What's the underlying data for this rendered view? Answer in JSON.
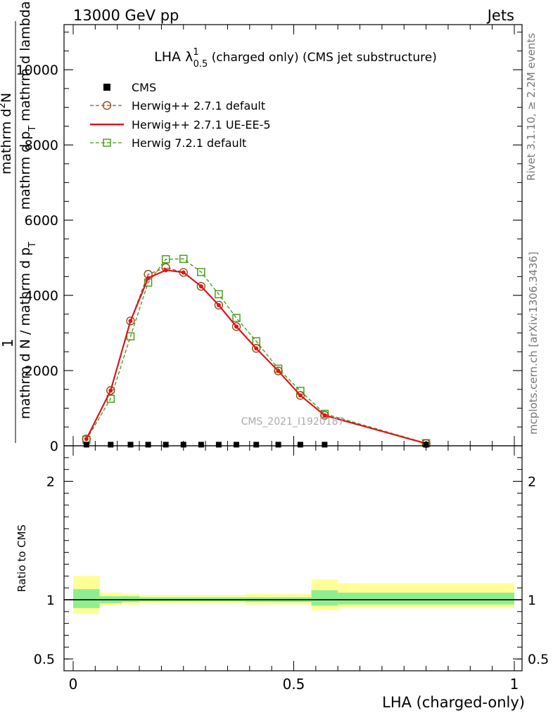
{
  "header": {
    "left": "13000 GeV pp",
    "right": "Jets"
  },
  "side": {
    "rivet": "Rivet 3.1.10, ≥ 2.2M events",
    "mcplots": "mcplots.cern.ch [arXiv:1306.3436]"
  },
  "chart_data": {
    "type": "line",
    "title": {
      "main": "LHA λ",
      "sup": "1",
      "sub": "0.5",
      "rest": " (charged only) (CMS jet substructure)"
    },
    "watermark": "CMS_2021_I1920187",
    "xlabel": "LHA (charged-only)",
    "ylabel_main": {
      "prefix": "1",
      "num_top": "mathrm d",
      "num_sup": "2",
      "num_bottom": "N",
      "den_top": "mathrm d p",
      "den_sub": "T",
      "den_rest": " mathrm d lambda",
      "left_num": "mathrm d N",
      "left_den": "mathrm d p",
      "left_den_sub": "T",
      "left_frac_extra": " / mathrm d p",
      "left_frac_sub": "T"
    },
    "ylabel_ratio": "Ratio to CMS",
    "xlim": [
      0,
      1
    ],
    "ylim": [
      0,
      11200
    ],
    "ratio_ylim": [
      0.4,
      2.3
    ],
    "x_ticks": [
      "0",
      "0.5",
      "1"
    ],
    "y_ticks": [
      "0",
      "2000",
      "4000",
      "6000",
      "8000",
      "10000"
    ],
    "ratio_ticks": [
      "0.5",
      "1",
      "2"
    ],
    "legend_position": "top-left",
    "x_centers": [
      0.03,
      0.085,
      0.13,
      0.17,
      0.21,
      0.25,
      0.29,
      0.33,
      0.37,
      0.415,
      0.465,
      0.515,
      0.57,
      0.8
    ],
    "series": [
      {
        "name": "CMS",
        "style": "data-squares",
        "color": "#000000",
        "values": [
          30,
          30,
          30,
          30,
          30,
          30,
          30,
          30,
          30,
          30,
          30,
          30,
          30,
          30
        ]
      },
      {
        "name": "Herwig++ 2.7.1 default",
        "style": "dashed-circle",
        "color": "#9a4d12",
        "values": [
          180,
          1470,
          3320,
          4560,
          4740,
          4610,
          4240,
          3740,
          3170,
          2590,
          1990,
          1340,
          810,
          60
        ]
      },
      {
        "name": "Herwig++ 2.7.1 UE-EE-5",
        "style": "solid",
        "color": "#e0141c",
        "values": [
          180,
          1470,
          3320,
          4460,
          4670,
          4610,
          4240,
          3740,
          3170,
          2590,
          1990,
          1340,
          810,
          60
        ]
      },
      {
        "name": "Herwig 7.2.1 default",
        "style": "dashed-square",
        "color": "#3c9a10",
        "values": [
          160,
          1250,
          2910,
          4340,
          4960,
          4970,
          4620,
          4030,
          3400,
          2780,
          2050,
          1460,
          850,
          70
        ]
      }
    ],
    "ratio_bands": {
      "edges": [
        0,
        0.06,
        0.11,
        0.15,
        0.19,
        0.23,
        0.27,
        0.31,
        0.35,
        0.39,
        0.44,
        0.49,
        0.54,
        0.6,
        1.0
      ],
      "outer_lo": [
        0.88,
        0.95,
        0.96,
        0.97,
        0.97,
        0.97,
        0.97,
        0.97,
        0.97,
        0.96,
        0.96,
        0.96,
        0.91,
        0.93
      ],
      "outer_hi": [
        1.2,
        1.06,
        1.05,
        1.04,
        1.04,
        1.04,
        1.04,
        1.04,
        1.04,
        1.05,
        1.05,
        1.05,
        1.17,
        1.14
      ],
      "inner_lo": [
        0.93,
        0.97,
        0.98,
        0.985,
        0.985,
        0.985,
        0.985,
        0.985,
        0.985,
        0.98,
        0.98,
        0.98,
        0.95,
        0.96
      ],
      "inner_hi": [
        1.09,
        1.03,
        1.03,
        1.02,
        1.02,
        1.02,
        1.02,
        1.02,
        1.02,
        1.02,
        1.02,
        1.02,
        1.08,
        1.06
      ],
      "outer_color": "#ffff96",
      "inner_color": "#90ee90"
    }
  }
}
